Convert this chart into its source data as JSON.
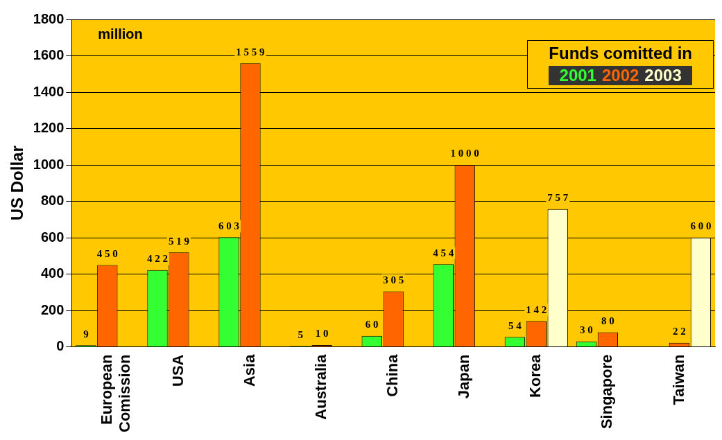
{
  "chart_data": {
    "type": "bar",
    "ylabel": "US Dollar",
    "legend_title": "Funds comitted in",
    "legend": "top right",
    "grid": "y",
    "data_labels": true,
    "annotations": [
      "million"
    ],
    "categories": [
      "European Comission",
      "USA",
      "Asia",
      "Australia",
      "China",
      "Japan",
      "Korea",
      "Singapore",
      "Taiwan"
    ],
    "series": [
      {
        "name": "2001",
        "color": "#33ff33",
        "values": [
          9,
          422,
          603,
          5,
          60,
          454,
          54,
          30,
          null
        ]
      },
      {
        "name": "2002",
        "color": "#ff6600",
        "values": [
          450,
          519,
          1559,
          10,
          305,
          1000,
          142,
          80,
          22
        ]
      },
      {
        "name": "2003",
        "color": "#ffffcc",
        "values": [
          null,
          null,
          null,
          null,
          null,
          null,
          757,
          null,
          600
        ]
      }
    ],
    "ylim": [
      0,
      1800
    ],
    "yticks": [
      0,
      200,
      400,
      600,
      800,
      1000,
      1200,
      1400,
      1600,
      1800
    ]
  }
}
